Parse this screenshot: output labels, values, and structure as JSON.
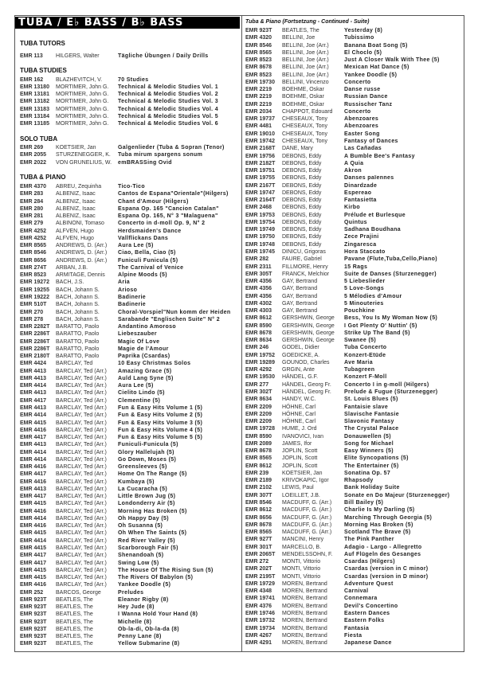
{
  "title": "TUBA / E♭ BASS / B♭ BASS",
  "left": {
    "sections": [
      {
        "heading": "TUBA TUTORS",
        "rows": [
          [
            "EMR 113",
            "HILGERS, Walter",
            "Tägliche Übungen / Daily Drills"
          ]
        ]
      },
      {
        "heading": "TUBA STUDIES",
        "rows": [
          [
            "EMR 162",
            "BLAZHEVITCH, V.",
            "70 Studies"
          ],
          [
            "EMR 13180",
            "MORTIMER, John G.",
            "Technical & Melodic Studies Vol. 1"
          ],
          [
            "EMR 13181",
            "MORTIMER, John G.",
            "Technical & Melodic Studies Vol. 2"
          ],
          [
            "EMR 13182",
            "MORTIMER, John G.",
            "Technical & Melodic Studies Vol. 3"
          ],
          [
            "EMR 13183",
            "MORTIMER, John G.",
            "Technical & Melodic Studies Vol. 4"
          ],
          [
            "EMR 13184",
            "MORTIMER, John G.",
            "Technical & Melodic Studies Vol. 5"
          ],
          [
            "EMR 13185",
            "MORTIMER, John G.",
            "Technical & Melodic Studies Vol. 6"
          ]
        ]
      },
      {
        "heading": "SOLO TUBA",
        "rows": [
          [
            "EMR 269",
            "KOETSIER, Jan",
            "Galgenlieder (Tuba & Sopran (Tenor)"
          ],
          [
            "EMR 2055",
            "STURZENEGGER, K.",
            "Tuba mirum spargens sonum"
          ],
          [
            "EMR 2022",
            "VON GRUNELIUS, W.",
            "emBRASSing Ovid"
          ]
        ]
      },
      {
        "heading": "TUBA & PIANO",
        "rows": [
          [
            "EMR 4370",
            "ABREU, Zequinha",
            "Tico-Tico"
          ],
          [
            "EMR 283",
            "ALBENIZ, Isaac",
            "Cantos de Espana\"Orientale\"(Hilgers)"
          ],
          [
            "EMR 284",
            "ALBENIZ, Isaac",
            "Chant d'Amour (Hilgers)"
          ],
          [
            "EMR 280",
            "ALBENIZ, Isaac",
            "Espana Op. 165 \"Cancion Catalan\""
          ],
          [
            "EMR 281",
            "ALBENIZ, Isaac",
            "Espana Op. 165, N° 3 \"Malaguena\""
          ],
          [
            "EMR 279",
            "ALBINONI, Tomaso",
            "Concerto in d-moll Op. 9, N° 2"
          ],
          [
            "EMR 4252",
            "ALFVEN, Hugo",
            "Herdsmaiden's Dance"
          ],
          [
            "EMR 4252",
            "ALFVEN, Hugo",
            "Vallflickans Dans"
          ],
          [
            "EMR 8565",
            "ANDREWS, D. (Arr.)",
            "Aura Lee (5)"
          ],
          [
            "EMR 8546",
            "ANDREWS, D. (Arr.)",
            "Ciao, Bella, Ciao (5)"
          ],
          [
            "EMR 8656",
            "ANDREWS, D. (Arr.)",
            "Funiculi Funicula (5)"
          ],
          [
            "EMR 274T",
            "ARBAN, J.B.",
            "The Carnival of Venice"
          ],
          [
            "EMR 8523",
            "ARMITAGE, Dennis",
            "Alpine Moods (5)"
          ],
          [
            "EMR 19272",
            "BACH, J.S.",
            "Aria"
          ],
          [
            "EMR 19255",
            "BACH, Johann S.",
            "Arioso"
          ],
          [
            "EMR 19222",
            "BACH, Johann S.",
            "Badinerie"
          ],
          [
            "EMR 510T",
            "BACH, Johann S.",
            "Badinerie"
          ],
          [
            "EMR 270",
            "BACH, Johann S.",
            "Choral-Vorspiel\"Nun komm der Heiden"
          ],
          [
            "EMR 278",
            "BACH, Johann S.",
            "Sarabande \"Englischen Suite\" N° 2"
          ],
          [
            "EMR 2282T",
            "BARATTO, Paolo",
            "Andantino Amoroso"
          ],
          [
            "EMR 2286T",
            "BARATTO, Paolo",
            "Liebeszauber"
          ],
          [
            "EMR 2286T",
            "BARATTO, Paolo",
            "Magic Of Love"
          ],
          [
            "EMR 2286T",
            "BARATTO, Paolo",
            "Magie de l'Amour"
          ],
          [
            "EMR 2180T",
            "BARATTO, Paolo",
            "Paprika (Csardas)"
          ],
          [
            "EMR 4424",
            "BARCLAY, Ted",
            "10 Easy Christmas Solos"
          ],
          [
            "EMR 4413",
            "BARCLAY, Ted (Arr.)",
            "Amazing Grace (5)"
          ],
          [
            "EMR 4413",
            "BARCLAY, Ted (Arr.)",
            "Auld Lang Syne (5)"
          ],
          [
            "EMR 4414",
            "BARCLAY, Ted (Arr.)",
            "Aura Lee (5)"
          ],
          [
            "EMR 4413",
            "BARCLAY, Ted (Arr.)",
            "Cielito Lindo (5)"
          ],
          [
            "EMR 4417",
            "BARCLAY, Ted (Arr.)",
            "Clementine (5)"
          ],
          [
            "EMR 4413",
            "BARCLAY, Ted (Arr.)",
            "Fun & Easy Hits Volume 1 (5)"
          ],
          [
            "EMR 4414",
            "BARCLAY, Ted (Arr.)",
            "Fun & Easy Hits Volume 2 (5)"
          ],
          [
            "EMR 4415",
            "BARCLAY, Ted (Arr.)",
            "Fun & Easy Hits Volume 3 (5)"
          ],
          [
            "EMR 4416",
            "BARCLAY, Ted (Arr.)",
            "Fun & Easy Hits Volume 4 (5)"
          ],
          [
            "EMR 4417",
            "BARCLAY, Ted (Arr.)",
            "Fun & Easy Hits Volume 5 (5)"
          ],
          [
            "EMR 4413",
            "BARCLAY, Ted (Arr.)",
            "Funiculi-Funicula (5)"
          ],
          [
            "EMR 4414",
            "BARCLAY, Ted (Arr.)",
            "Glory Hallelujah (5)"
          ],
          [
            "EMR 4414",
            "BARCLAY, Ted (Arr.)",
            "Go Down, Moses (5)"
          ],
          [
            "EMR 4416",
            "BARCLAY, Ted (Arr.)",
            "Greensleeves (5)"
          ],
          [
            "EMR 4417",
            "BARCLAY, Ted (Arr.)",
            "Home On The Range (5)"
          ],
          [
            "EMR 4416",
            "BARCLAY, Ted (Arr.)",
            "Kumbaya (5)"
          ],
          [
            "EMR 4413",
            "BARCLAY, Ted (Arr.)",
            "La Cucaracha (5)"
          ],
          [
            "EMR 4417",
            "BARCLAY, Ted (Arr.)",
            "Little Brown Jug (5)"
          ],
          [
            "EMR 4415",
            "BARCLAY, Ted (Arr.)",
            "Londonderry Air (5)"
          ],
          [
            "EMR 4416",
            "BARCLAY, Ted (Arr.)",
            "Morning Has Broken (5)"
          ],
          [
            "EMR 4414",
            "BARCLAY, Ted (Arr.)",
            "Oh Happy Day (5)"
          ],
          [
            "EMR 4416",
            "BARCLAY, Ted (Arr.)",
            "Oh Susanna (5)"
          ],
          [
            "EMR 4415",
            "BARCLAY, Ted (Arr.)",
            "Oh When The Saints (5)"
          ],
          [
            "EMR 4414",
            "BARCLAY, Ted (Arr.)",
            "Red River Valley (5)"
          ],
          [
            "EMR 4415",
            "BARCLAY, Ted (Arr.)",
            "Scarborough Fair (5)"
          ],
          [
            "EMR 4417",
            "BARCLAY, Ted (Arr.)",
            "Shenandoah (5)"
          ],
          [
            "EMR 4417",
            "BARCLAY, Ted (Arr.)",
            "Swing Low (5)"
          ],
          [
            "EMR 4415",
            "BARCLAY, Ted (Arr.)",
            "The House Of The Rising Sun (5)"
          ],
          [
            "EMR 4415",
            "BARCLAY, Ted (Arr.)",
            "The Rivers Of Babylon (5)"
          ],
          [
            "EMR 4416",
            "BARCLAY, Ted (Arr.)",
            "Yankee Doodle (5)"
          ],
          [
            "EMR 252",
            "BARCOS, George",
            "Preludes"
          ],
          [
            "EMR 923T",
            "BEATLES, The",
            "Eleanor Rigby (8)"
          ],
          [
            "EMR 923T",
            "BEATLES, The",
            "Hey Jude (8)"
          ],
          [
            "EMR 923T",
            "BEATLES, The",
            "I Wanna Hold Your Hand (8)"
          ],
          [
            "EMR 923T",
            "BEATLES, The",
            "Michelle (8)"
          ],
          [
            "EMR 923T",
            "BEATLES, The",
            "Ob-la-di, Ob-la-da (8)"
          ],
          [
            "EMR 923T",
            "BEATLES, The",
            "Penny Lane (8)"
          ],
          [
            "EMR 923T",
            "BEATLES, The",
            "Yellow Submarine (8)"
          ]
        ]
      }
    ]
  },
  "right": {
    "heading": "Tuba & Piano (Fortsetzung - Continued - Suite)",
    "rows": [
      [
        "EMR 923T",
        "BEATLES, The",
        "Yesterday (8)"
      ],
      [
        "EMR 4320",
        "BELLINI, Joe",
        "Tubissimo"
      ],
      [
        "EMR 8546",
        "BELLINI, Joe (Arr.)",
        "Banana Boat Song (5)"
      ],
      [
        "EMR 8565",
        "BELLINI, Joe (Arr.)",
        "El Choclo (5)"
      ],
      [
        "EMR 8523",
        "BELLINI, Joe (Arr.)",
        "Just A Closer Walk With Thee (5)"
      ],
      [
        "EMR 8678",
        "BELLINI, Joe (Arr.)",
        "Mexican Hat Dance (5)"
      ],
      [
        "EMR 8523",
        "BELLINI, Joe (Arr.)",
        "Yankee Doodle (5)"
      ],
      [
        "EMR 19730",
        "BELLINI, Vincenzo",
        "Concerto"
      ],
      [
        "EMR 2219",
        "BOEHME, Oskar",
        "Danse russe"
      ],
      [
        "EMR 2219",
        "BOEHME, Oskar",
        "Russian Dance"
      ],
      [
        "EMR 2219",
        "BOEHME, Oskar",
        "Russischer Tanz"
      ],
      [
        "EMR 2034",
        "CHAPPOT, Edouard",
        "Concerto"
      ],
      [
        "EMR 19737",
        "CHESEAUX, Tony",
        "Abenzoares"
      ],
      [
        "EMR 4481",
        "CHESEAUX, Tony",
        "Abenzoares"
      ],
      [
        "EMR 19010",
        "CHESEAUX, Tony",
        "Easter Song"
      ],
      [
        "EMR 19742",
        "CHESEAUX, Tony",
        "Fantasy of Dances"
      ],
      [
        "EMR 2168T",
        "DANE, Mary",
        "Las Cañadas"
      ],
      [
        "EMR 19756",
        "DEBONS, Eddy",
        "A Bumble Bee's Fantasy"
      ],
      [
        "EMR 2182T",
        "DEBONS, Eddy",
        "A Quia"
      ],
      [
        "EMR 19751",
        "DEBONS, Eddy",
        "Akron"
      ],
      [
        "EMR 19755",
        "DEBONS, Eddy",
        "Danses païennes"
      ],
      [
        "EMR 2167T",
        "DEBONS, Eddy",
        "Dinardzade"
      ],
      [
        "EMR 19747",
        "DEBONS, Eddy",
        "Espereao"
      ],
      [
        "EMR 2164T",
        "DEBONS, Eddy",
        "Fantasietta"
      ],
      [
        "EMR 2468",
        "DEBONS, Eddy",
        "Kirbo"
      ],
      [
        "EMR 19753",
        "DEBONS, Eddy",
        "Prélude et Burlesque"
      ],
      [
        "EMR 19754",
        "DEBONS, Eddy",
        "Quintus"
      ],
      [
        "EMR 19749",
        "DEBONS, Eddy",
        "Sadhana Boudhana"
      ],
      [
        "EMR 19750",
        "DEBONS, Eddy",
        "Zece Prajini"
      ],
      [
        "EMR 19748",
        "DEBONS, Eddy",
        "Zingaresca"
      ],
      [
        "EMR 19745",
        "DINICU, Grigoras",
        "Hora Staccato"
      ],
      [
        "EMR 282",
        "FAURE, Gabriel",
        "Pavane (Flute,Tuba,Cello,Piano)"
      ],
      [
        "EMR 2311",
        "FILLMORE, Henry",
        "15 Rags"
      ],
      [
        "EMR 305T",
        "FRANCK, Melchior",
        "Suite de Danses (Sturzenegger)"
      ],
      [
        "EMR 4356",
        "GAY, Bertrand",
        "5 Liebeslieder"
      ],
      [
        "EMR 4356",
        "GAY, Bertrand",
        "5 Love-Songs"
      ],
      [
        "EMR 4356",
        "GAY, Bertrand",
        "5 Mélodies d'Amour"
      ],
      [
        "EMR 4302",
        "GAY, Bertrand",
        "5 Minouteries"
      ],
      [
        "EMR 4303",
        "GAY, Bertrand",
        "Pouchkine"
      ],
      [
        "EMR 8612",
        "GERSHWIN, George",
        "Bess, You Is My Woman Now (5)"
      ],
      [
        "EMR 8590",
        "GERSHWIN, George",
        "I Got Plenty O' Nuttin' (5)"
      ],
      [
        "EMR 8678",
        "GERSHWIN, George",
        "Strike Up The Band (5)"
      ],
      [
        "EMR 8634",
        "GERSHWIN, George",
        "Swanee (5)"
      ],
      [
        "EMR 246",
        "GODEL, Didier",
        "Tuba Concerto"
      ],
      [
        "EMR 19752",
        "GOEDICKE, A.",
        "Konzert-Etüde"
      ],
      [
        "EMR 19289",
        "GOUNOD, Charles",
        "Ave Maria"
      ],
      [
        "EMR 4292",
        "GRGIN, Ante",
        "Tubagreen"
      ],
      [
        "EMR 19530",
        "HÄNDEL, G.F.",
        "Konzert F-Moll"
      ],
      [
        "EMR 277",
        "HÄNDEL, Georg Fr.",
        "Concerto I in g-moll (Hilgers)"
      ],
      [
        "EMR 302T",
        "HÄNDEL, Georg Fr.",
        "Prelude & Fugue (Sturzenegger)"
      ],
      [
        "EMR 8634",
        "HANDY, W.C.",
        "St. Louis Blues (5)"
      ],
      [
        "EMR 2209",
        "HÖHNE, Carl",
        "Fantaisie slave"
      ],
      [
        "EMR 2209",
        "HÖHNE, Carl",
        "Slavische Fantasie"
      ],
      [
        "EMR 2209",
        "HÖHNE, Carl",
        "Slavonic Fantasy"
      ],
      [
        "EMR 19728",
        "HUME, J. Ord",
        "The Crystal Palace"
      ],
      [
        "EMR 8590",
        "IVANOVICI, Ivan",
        "Donauwellen (5)"
      ],
      [
        "EMR 2089",
        "JAMES, Ifor",
        "Song for Michael"
      ],
      [
        "EMR 8678",
        "JOPLIN, Scott",
        "Easy Winners (5)"
      ],
      [
        "EMR 8565",
        "JOPLIN, Scott",
        "Elite Syncopations (5)"
      ],
      [
        "EMR 8612",
        "JOPLIN, Scott",
        "The Entertainer (5)"
      ],
      [
        "EMR 239",
        "KOETSIER, Jan",
        "Sonatina Op. 57"
      ],
      [
        "EMR 2189",
        "KRIVOKAPIC, Igor",
        "Rhapsody"
      ],
      [
        "EMR 2102",
        "LEWIS, Paul",
        "Bank Holiday Suite"
      ],
      [
        "EMR 307T",
        "LOEILLET, J.B.",
        "Sonate en Do Majeur (Sturzenegger)"
      ],
      [
        "EMR 8546",
        "MACDUFF, G. (Arr.)",
        "Bill Bailey (5)"
      ],
      [
        "EMR 8612",
        "MACDUFF, G. (Arr.)",
        "Charlie Is My Darling (5)"
      ],
      [
        "EMR 8656",
        "MACDUFF, G. (Arr.)",
        "Marching Through Georgia (5)"
      ],
      [
        "EMR 8678",
        "MACDUFF, G. (Arr.)",
        "Morning Has Broken (5)"
      ],
      [
        "EMR 8565",
        "MACDUFF, G. (Arr.)",
        "Scotland The Brave (5)"
      ],
      [
        "EMR 927T",
        "MANCINI, Henry",
        "The Pink Panther"
      ],
      [
        "EMR 301T",
        "MARCELLO, B.",
        "Adagio - Largo - Allegretto"
      ],
      [
        "EMR 2065T",
        "MENDELSSOHN, F.",
        "Auf Flügeln des Gesanges"
      ],
      [
        "EMR 272",
        "MONTI, Vittorio",
        "Csardas (Hilgers)"
      ],
      [
        "EMR 202T",
        "MONTI, Vittorio",
        "Csardas (version in C minor)"
      ],
      [
        "EMR 2195T",
        "MONTI, Vittorio",
        "Csardas (version in D minor)"
      ],
      [
        "EMR 19729",
        "MOREN, Bertrand",
        "Adventure Quest"
      ],
      [
        "EMR 4348",
        "MOREN, Bertrand",
        "Carnival"
      ],
      [
        "EMR 19741",
        "MOREN, Bertrand",
        "Connemara"
      ],
      [
        "EMR 4376",
        "MOREN, Bertrand",
        "Devil's Concertino"
      ],
      [
        "EMR 19746",
        "MOREN, Bertrand",
        "Eastern Dances"
      ],
      [
        "EMR 19732",
        "MOREN, Bertrand",
        "Eastern Folks"
      ],
      [
        "EMR 19734",
        "MOREN, Bertrand",
        "Fantasia"
      ],
      [
        "EMR 4267",
        "MOREN, Bertrand",
        "Fiesta"
      ],
      [
        "EMR 4291",
        "MOREN, Bertrand",
        "Japanese Dance"
      ]
    ]
  }
}
